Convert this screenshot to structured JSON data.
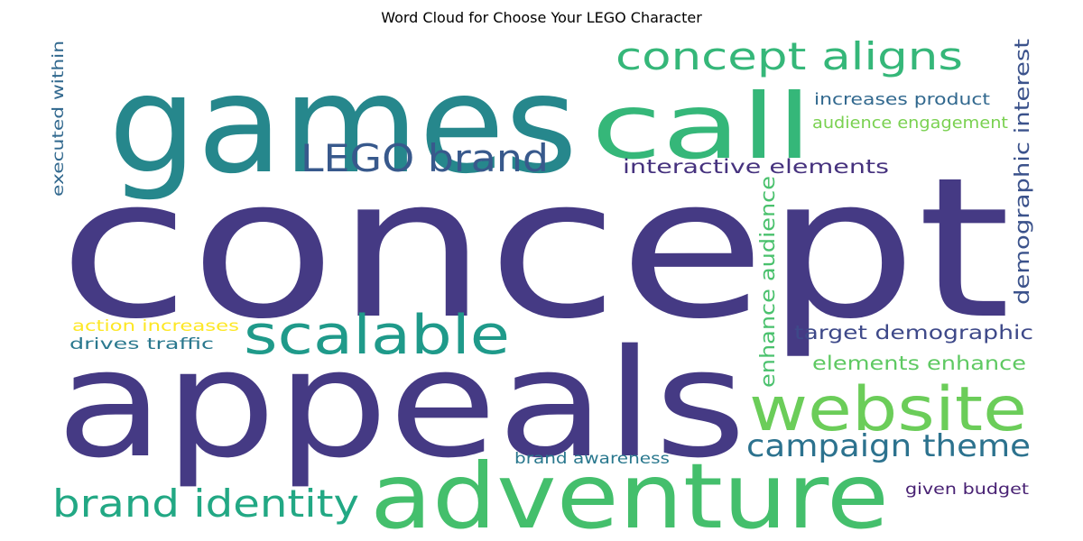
{
  "chart_data": {
    "type": "wordcloud",
    "title": "Word Cloud for Choose Your LEGO Character",
    "words": [
      {
        "text": "concept",
        "weight": 1.0,
        "color": "#453a84",
        "orientation": "horizontal"
      },
      {
        "text": "appeals",
        "weight": 0.62,
        "color": "#453a84",
        "orientation": "horizontal"
      },
      {
        "text": "games",
        "weight": 0.55,
        "color": "#26878c",
        "orientation": "horizontal"
      },
      {
        "text": "adventure",
        "weight": 0.42,
        "color": "#44bf6c",
        "orientation": "horizontal"
      },
      {
        "text": "call",
        "weight": 0.38,
        "color": "#35b779",
        "orientation": "horizontal"
      },
      {
        "text": "website",
        "weight": 0.3,
        "color": "#6bcd59",
        "orientation": "horizontal"
      },
      {
        "text": "scalable",
        "weight": 0.26,
        "color": "#1f9a8a",
        "orientation": "horizontal"
      },
      {
        "text": "concept aligns",
        "weight": 0.18,
        "color": "#35b779",
        "orientation": "horizontal"
      },
      {
        "text": "brand identity",
        "weight": 0.18,
        "color": "#22a884",
        "orientation": "horizontal"
      },
      {
        "text": "LEGO brand",
        "weight": 0.18,
        "color": "#38598c",
        "orientation": "horizontal"
      },
      {
        "text": "campaign theme",
        "weight": 0.15,
        "color": "#2c728e",
        "orientation": "horizontal"
      },
      {
        "text": "enhance audience",
        "weight": 0.1,
        "color": "#4ac16d",
        "orientation": "vertical"
      },
      {
        "text": "demographic interest",
        "weight": 0.1,
        "color": "#3b528b",
        "orientation": "vertical"
      },
      {
        "text": "interactive elements",
        "weight": 0.1,
        "color": "#46327e",
        "orientation": "horizontal"
      },
      {
        "text": "target demographic",
        "weight": 0.1,
        "color": "#3e4989",
        "orientation": "horizontal"
      },
      {
        "text": "elements enhance",
        "weight": 0.1,
        "color": "#5ec962",
        "orientation": "horizontal"
      },
      {
        "text": "increases product",
        "weight": 0.08,
        "color": "#31688e",
        "orientation": "horizontal"
      },
      {
        "text": "audience engagement",
        "weight": 0.08,
        "color": "#7ad151",
        "orientation": "horizontal"
      },
      {
        "text": "executed within",
        "weight": 0.07,
        "color": "#31688e",
        "orientation": "vertical"
      },
      {
        "text": "action increases",
        "weight": 0.07,
        "color": "#fde725",
        "orientation": "horizontal"
      },
      {
        "text": "drives traffic",
        "weight": 0.07,
        "color": "#2a788e",
        "orientation": "horizontal"
      },
      {
        "text": "brand awareness",
        "weight": 0.07,
        "color": "#2a788e",
        "orientation": "horizontal"
      },
      {
        "text": "given budget",
        "weight": 0.07,
        "color": "#482173",
        "orientation": "horizontal"
      }
    ]
  }
}
